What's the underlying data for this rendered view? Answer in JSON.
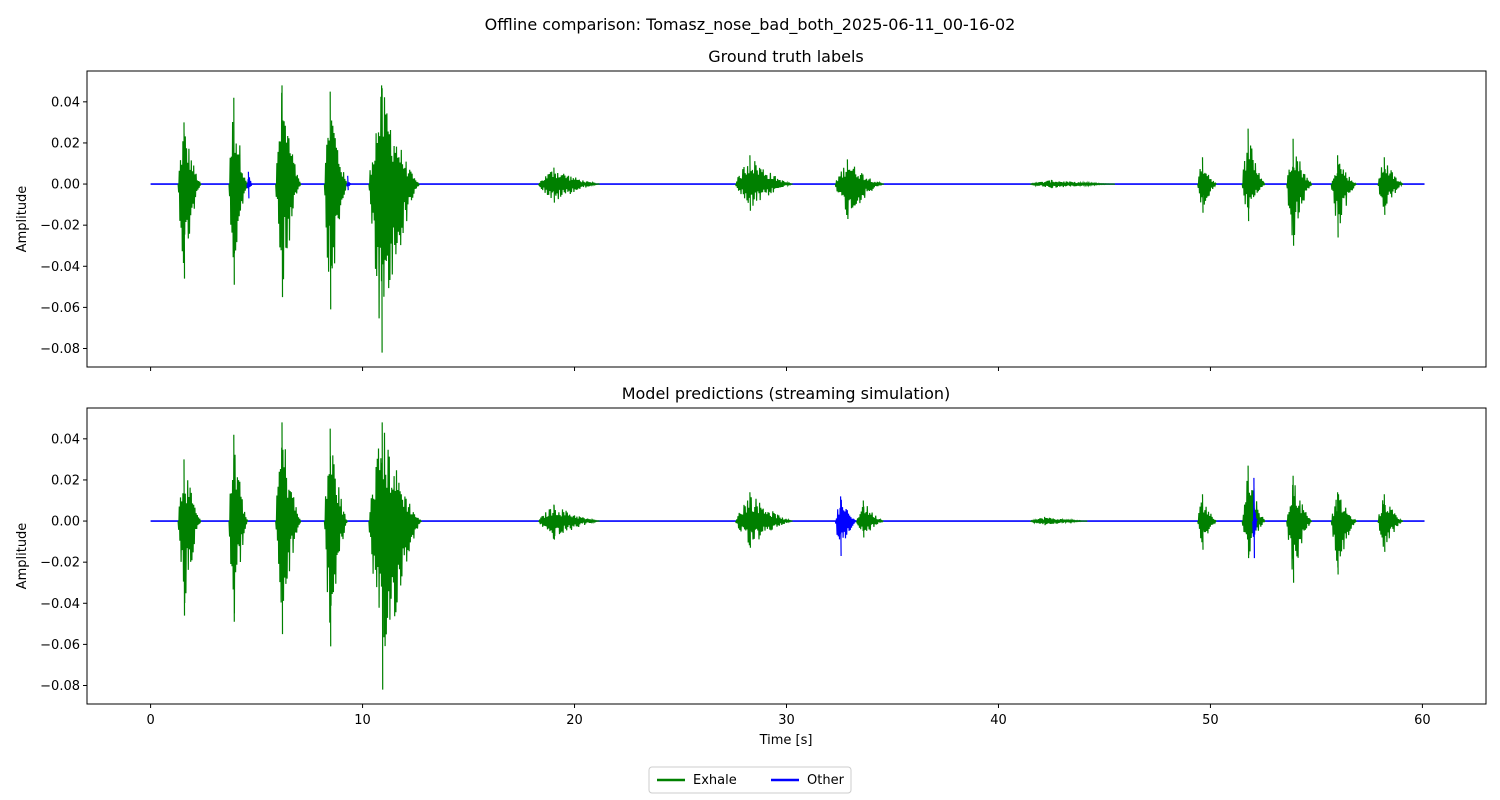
{
  "figure": {
    "suptitle": "Offline comparison: Tomasz_nose_bad_both_2025-06-11_00-16-02",
    "legend": {
      "placement": "bottom-center",
      "entries": [
        {
          "label": "Exhale",
          "color": "#008000"
        },
        {
          "label": "Other",
          "color": "#0000ff"
        }
      ]
    }
  },
  "chart_data": [
    {
      "type": "line",
      "title": "Ground truth labels",
      "xlabel": "",
      "ylabel": "Amplitude",
      "xlim": [
        -3,
        63
      ],
      "ylim": [
        -0.089,
        0.055
      ],
      "xticks": [
        0,
        10,
        20,
        30,
        40,
        50,
        60
      ],
      "xtick_labels_shown": false,
      "yticks": [
        -0.08,
        -0.06,
        -0.04,
        -0.02,
        0.0,
        0.02,
        0.04
      ],
      "ytick_labels": [
        "−0.08",
        "−0.06",
        "−0.04",
        "−0.02",
        "0.00",
        "0.02",
        "0.04"
      ],
      "grid": false,
      "series": [
        {
          "name": "Exhale",
          "color": "#008000"
        },
        {
          "name": "Other",
          "color": "#0000ff"
        }
      ],
      "baseline_span": [
        0,
        60.1
      ],
      "bursts": [
        {
          "label": "Exhale",
          "start": 1.3,
          "end": 2.4,
          "peak": 0.03,
          "trough": -0.046
        },
        {
          "label": "Exhale",
          "start": 3.7,
          "end": 4.6,
          "peak": 0.042,
          "trough": -0.049
        },
        {
          "label": "Other",
          "start": 4.55,
          "end": 4.8,
          "peak": 0.006,
          "trough": -0.007
        },
        {
          "label": "Exhale",
          "start": 5.9,
          "end": 7.1,
          "peak": 0.048,
          "trough": -0.055
        },
        {
          "label": "Exhale",
          "start": 8.2,
          "end": 9.3,
          "peak": 0.045,
          "trough": -0.061
        },
        {
          "label": "Other",
          "start": 9.25,
          "end": 9.45,
          "peak": 0.004,
          "trough": -0.003
        },
        {
          "label": "Exhale",
          "start": 10.3,
          "end": 12.7,
          "peak": 0.048,
          "trough": -0.082
        },
        {
          "label": "Exhale",
          "start": 18.3,
          "end": 21.2,
          "peak": 0.008,
          "trough": -0.009
        },
        {
          "label": "Exhale",
          "start": 27.6,
          "end": 30.3,
          "peak": 0.014,
          "trough": -0.013
        },
        {
          "label": "Exhale",
          "start": 32.3,
          "end": 34.6,
          "peak": 0.012,
          "trough": -0.017
        },
        {
          "label": "Exhale",
          "start": 41.5,
          "end": 45.5,
          "peak": 0.002,
          "trough": -0.002
        },
        {
          "label": "Exhale",
          "start": 49.4,
          "end": 50.3,
          "peak": 0.013,
          "trough": -0.014
        },
        {
          "label": "Exhale",
          "start": 51.5,
          "end": 52.6,
          "peak": 0.027,
          "trough": -0.018
        },
        {
          "label": "Exhale",
          "start": 53.6,
          "end": 54.8,
          "peak": 0.022,
          "trough": -0.03
        },
        {
          "label": "Exhale",
          "start": 55.7,
          "end": 56.9,
          "peak": 0.014,
          "trough": -0.026
        },
        {
          "label": "Exhale",
          "start": 57.9,
          "end": 59.1,
          "peak": 0.013,
          "trough": -0.015
        }
      ]
    },
    {
      "type": "line",
      "title": "Model predictions (streaming simulation)",
      "xlabel": "Time [s]",
      "ylabel": "Amplitude",
      "xlim": [
        -3,
        63
      ],
      "ylim": [
        -0.089,
        0.055
      ],
      "xticks": [
        0,
        10,
        20,
        30,
        40,
        50,
        60
      ],
      "xtick_labels": [
        "0",
        "10",
        "20",
        "30",
        "40",
        "50",
        "60"
      ],
      "yticks": [
        -0.08,
        -0.06,
        -0.04,
        -0.02,
        0.0,
        0.02,
        0.04
      ],
      "ytick_labels": [
        "−0.08",
        "−0.06",
        "−0.04",
        "−0.02",
        "0.00",
        "0.02",
        "0.04"
      ],
      "grid": false,
      "series": [
        {
          "name": "Exhale",
          "color": "#008000"
        },
        {
          "name": "Other",
          "color": "#0000ff"
        }
      ],
      "baseline_span": [
        0,
        60.1
      ],
      "bursts": [
        {
          "label": "Exhale",
          "start": 1.3,
          "end": 2.4,
          "peak": 0.03,
          "trough": -0.046
        },
        {
          "label": "Exhale",
          "start": 3.7,
          "end": 4.6,
          "peak": 0.042,
          "trough": -0.049
        },
        {
          "label": "Exhale",
          "start": 5.9,
          "end": 7.1,
          "peak": 0.048,
          "trough": -0.055
        },
        {
          "label": "Exhale",
          "start": 8.2,
          "end": 9.3,
          "peak": 0.045,
          "trough": -0.061
        },
        {
          "label": "Exhale",
          "start": 10.3,
          "end": 12.8,
          "peak": 0.048,
          "trough": -0.082
        },
        {
          "label": "Exhale",
          "start": 18.3,
          "end": 21.2,
          "peak": 0.008,
          "trough": -0.009
        },
        {
          "label": "Exhale",
          "start": 27.6,
          "end": 30.3,
          "peak": 0.014,
          "trough": -0.013
        },
        {
          "label": "Other",
          "start": 32.3,
          "end": 33.3,
          "peak": 0.012,
          "trough": -0.017
        },
        {
          "label": "Exhale",
          "start": 33.3,
          "end": 34.6,
          "peak": 0.01,
          "trough": -0.008
        },
        {
          "label": "Exhale",
          "start": 41.5,
          "end": 44.2,
          "peak": 0.002,
          "trough": -0.002
        },
        {
          "label": "Exhale",
          "start": 49.4,
          "end": 50.3,
          "peak": 0.013,
          "trough": -0.014
        },
        {
          "label": "Exhale",
          "start": 51.5,
          "end": 52.6,
          "peak": 0.027,
          "trough": -0.018
        },
        {
          "label": "Other",
          "start": 52.0,
          "end": 52.2,
          "peak": 0.021,
          "trough": -0.018
        },
        {
          "label": "Exhale",
          "start": 53.6,
          "end": 54.8,
          "peak": 0.022,
          "trough": -0.03
        },
        {
          "label": "Exhale",
          "start": 55.7,
          "end": 56.9,
          "peak": 0.014,
          "trough": -0.026
        },
        {
          "label": "Exhale",
          "start": 57.9,
          "end": 59.1,
          "peak": 0.013,
          "trough": -0.015
        }
      ]
    }
  ]
}
